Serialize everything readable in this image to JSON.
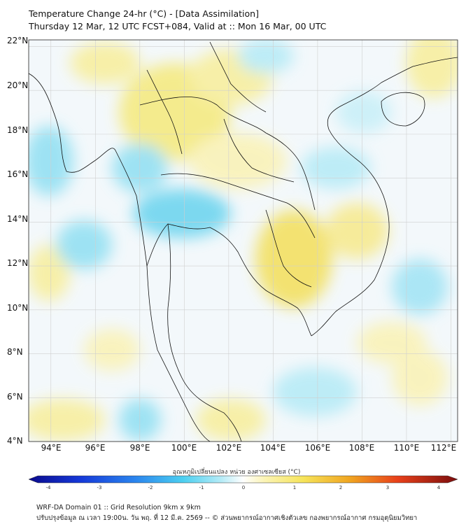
{
  "title": {
    "line1": "Temperature Change 24-hr (°C) - [Data Assimilation]",
    "line2": "Thursday 12 Mar, 12 UTC FCST+084, Valid at :: Mon 16 Mar, 00 UTC"
  },
  "map": {
    "lat_labels": [
      "22°N",
      "20°N",
      "18°N",
      "16°N",
      "14°N",
      "12°N",
      "10°N",
      "8°N",
      "6°N",
      "4°N"
    ],
    "lon_labels": [
      "94°E",
      "96°E",
      "98°E",
      "100°E",
      "102°E",
      "104°E",
      "106°E",
      "108°E",
      "110°E",
      "112°E"
    ],
    "lat_range": [
      4,
      22.3
    ],
    "lon_range": [
      93,
      112.3
    ],
    "colors": {
      "land_line": "#111111",
      "grid": "#cfcfcf",
      "warm": "#f5e97a",
      "cool": "#67d3ee"
    }
  },
  "colorbar": {
    "title": "อุณหภูมิเปลี่ยนแปลง หน่วย องศาเซลเซียส (°C)",
    "ticks": [
      "-4",
      "-3",
      "-2",
      "-1",
      "0",
      "1",
      "2",
      "3",
      "4"
    ],
    "range": [
      -4,
      4
    ]
  },
  "footer": {
    "line1": "WRF-DA Domain 01 :: Grid Resolution 9km x 9km",
    "line2": "ปรับปรุงข้อมูล ณ เวลา 19:00น. วัน พฤ. ที่ 12 มี.ค. 2569 -- © ส่วนพยากรณ์อากาศเชิงตัวเลข กองพยากรณ์อากาศ กรมอุตุนิยมวิทยา"
  }
}
